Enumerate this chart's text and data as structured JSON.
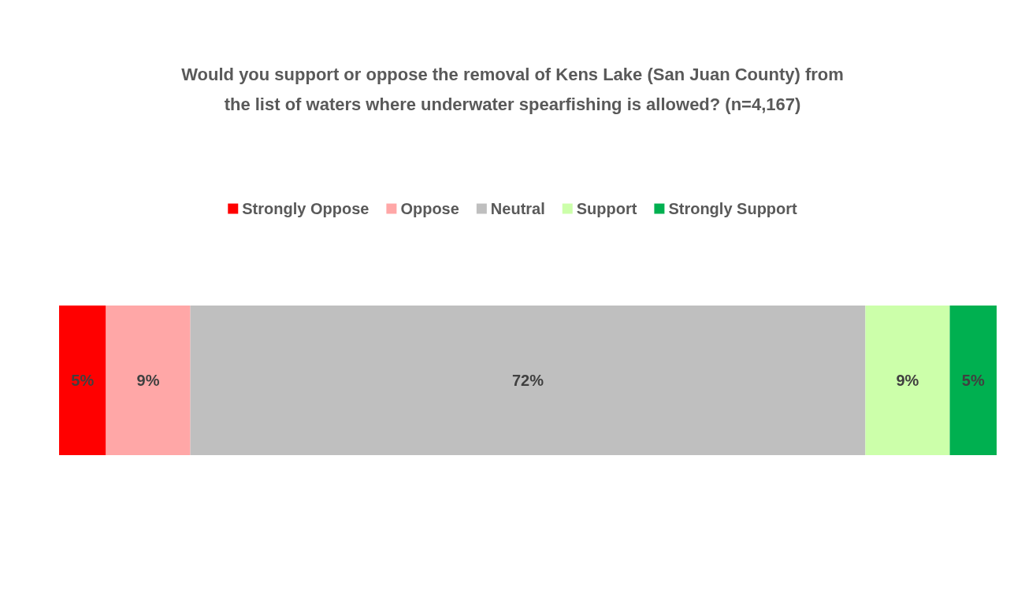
{
  "chart_data": {
    "type": "bar",
    "orientation": "horizontal",
    "stacked": true,
    "title": "Would you support or oppose the removal of Kens Lake (San Juan County) from\nthe list of waters where underwater spearfishing is allowed? (n=4,167)",
    "categories": [
      null
    ],
    "series": [
      {
        "name": "Strongly Oppose",
        "color": "#ff0000",
        "values": [
          5
        ],
        "value_labels": [
          "5%"
        ]
      },
      {
        "name": "Oppose",
        "color": "#ffa7a7",
        "values": [
          9
        ],
        "value_labels": [
          "9%"
        ]
      },
      {
        "name": "Neutral",
        "color": "#bfbfbf",
        "values": [
          72
        ],
        "value_labels": [
          "72%"
        ]
      },
      {
        "name": "Support",
        "color": "#ccffaa",
        "values": [
          9
        ],
        "value_labels": [
          "9%"
        ]
      },
      {
        "name": "Strongly Support",
        "color": "#00b050",
        "values": [
          5
        ],
        "value_labels": [
          "5%"
        ]
      }
    ],
    "legend": "top"
  }
}
